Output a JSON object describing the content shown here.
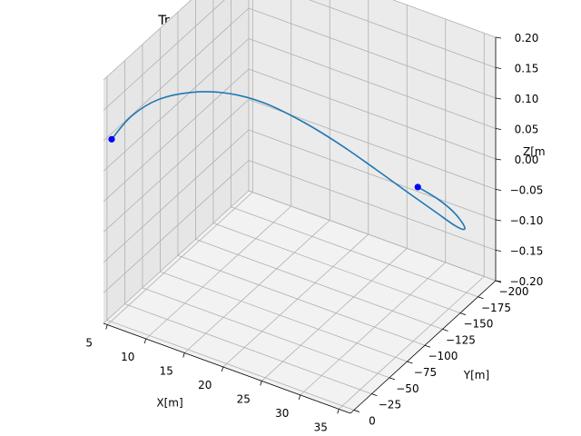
{
  "chart_data": {
    "type": "line3d",
    "title": "Trayectoria relativa del segundo satelite",
    "xlabel": "X[m]",
    "ylabel": "Y[m]",
    "zlabel": "Z[m",
    "xlim": [
      4.5,
      36.5
    ],
    "ylim": [
      -200,
      5
    ],
    "zlim": [
      -0.2,
      0.2
    ],
    "xticks": [
      5,
      10,
      15,
      20,
      25,
      30,
      35
    ],
    "xtick_labels": [
      "5",
      "10",
      "15",
      "20",
      "25",
      "30",
      "35"
    ],
    "yticks": [
      0,
      -25,
      -50,
      -75,
      -100,
      -125,
      -150,
      -175,
      -200
    ],
    "ytick_labels": [
      "0",
      "−25",
      "−50",
      "−75",
      "−100",
      "−125",
      "−150",
      "−175",
      "−200"
    ],
    "zticks": [
      -0.2,
      -0.15,
      -0.1,
      -0.05,
      0,
      0.05,
      0.1,
      0.15,
      0.2
    ],
    "ztick_labels": [
      "−0.20",
      "−0.15",
      "−0.10",
      "−0.05",
      "0.00",
      "0.05",
      "0.10",
      "0.15",
      "0.20"
    ],
    "grid": true,
    "series": [
      {
        "color": "#1f77b4",
        "points": [
          {
            "x": 5.1,
            "y": 0,
            "z": 0.1
          },
          {
            "x": 7.35,
            "y": -3.4,
            "z": 0.1447
          },
          {
            "x": 9.9,
            "y": -13.4,
            "z": 0.173
          },
          {
            "x": 12.8,
            "y": -29.3,
            "z": 0.1815
          },
          {
            "x": 15.45,
            "y": -50.0,
            "z": 0.1703
          },
          {
            "x": 17.95,
            "y": -74.1,
            "z": 0.1407
          },
          {
            "x": 20.5,
            "y": -100.0,
            "z": 0.0949
          },
          {
            "x": 23.0,
            "y": -125.9,
            "z": 0.0414
          },
          {
            "x": 25.5,
            "y": -150.0,
            "z": -0.0142
          },
          {
            "x": 28.0,
            "y": -170.7,
            "z": -0.0648
          },
          {
            "x": 30.0,
            "y": -186.6,
            "z": -0.1035
          },
          {
            "x": 31.5,
            "y": -196.6,
            "z": -0.1287
          },
          {
            "x": 32.4,
            "y": -200.0,
            "z": -0.1347
          },
          {
            "x": 32.6,
            "y": -196.6,
            "z": -0.1215
          },
          {
            "x": 32.2,
            "y": -186.6,
            "z": -0.0918
          },
          {
            "x": 31.6,
            "y": -170.7,
            "z": -0.0565
          },
          {
            "x": 31.0,
            "y": -150.0,
            "z": -0.0184
          }
        ]
      }
    ],
    "markers": [
      {
        "x": 5.1,
        "y": 0,
        "z": 0.1,
        "color": "#0000ff"
      },
      {
        "x": 31.0,
        "y": -150.0,
        "z": -0.0184,
        "color": "#0000ff"
      }
    ]
  }
}
